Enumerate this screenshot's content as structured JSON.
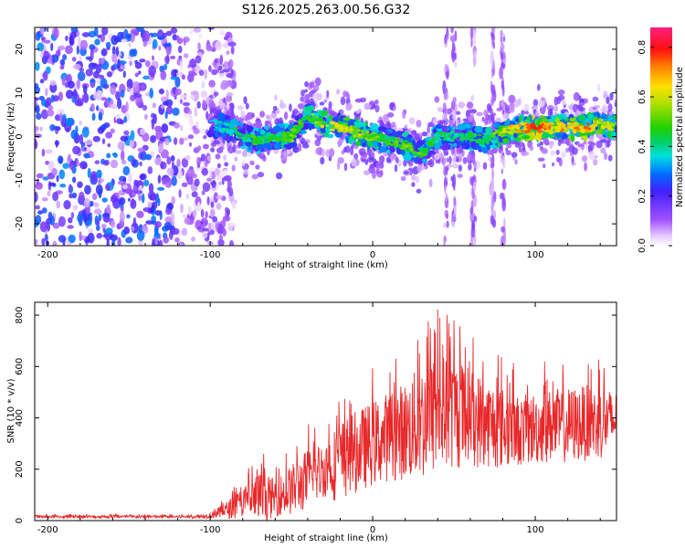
{
  "title": "S126.2025.263.00.56.G32",
  "colors": {
    "series": "#e8282a",
    "frame": "#000000",
    "spectrogram_background": "#ffffff"
  },
  "chart_data": [
    {
      "type": "heatmap",
      "xlabel": "Height of straight line (km)",
      "ylabel": "Frequency (Hz)",
      "xlim": [
        -208,
        150
      ],
      "ylim": [
        -25,
        25
      ],
      "xticks": [
        -200,
        -100,
        0,
        100
      ],
      "yticks": [
        -20,
        -10,
        0,
        10,
        20
      ],
      "colorbar": {
        "label": "Normalized spectral amplitude",
        "range": [
          0.0,
          0.88
        ],
        "ticks": [
          "0.0",
          "0.2",
          "0.4",
          "0.6",
          "0.8"
        ],
        "colormap": "rainbow (violet-blue-cyan-green-yellow-red-magenta)"
      },
      "ridge": {
        "description": "spectral line near 0 Hz from about -100 km to 150 km",
        "x": [
          -100,
          -90,
          -80,
          -70,
          -60,
          -50,
          -40,
          -30,
          -20,
          -10,
          0,
          10,
          20,
          30,
          40,
          50,
          60,
          70,
          80,
          90,
          100,
          110,
          120,
          130,
          140,
          150
        ],
        "y": [
          3,
          2,
          0,
          -1,
          0,
          0,
          5,
          3,
          2,
          1,
          0,
          -1,
          -2,
          -4,
          0,
          0,
          0,
          -1,
          1,
          2,
          2,
          2,
          2,
          2,
          3,
          2
        ],
        "peak_amplitude": [
          0.35,
          0.4,
          0.45,
          0.5,
          0.45,
          0.55,
          0.5,
          0.6,
          0.65,
          0.6,
          0.55,
          0.5,
          0.55,
          0.5,
          0.45,
          0.45,
          0.5,
          0.5,
          0.6,
          0.7,
          0.8,
          0.75,
          0.7,
          0.75,
          0.65,
          0.6
        ]
      },
      "noise_region": {
        "x_range": [
          -208,
          -100
        ],
        "typical_amplitude": 0.15
      },
      "vertical_streaks_x": [
        45,
        50,
        62,
        74,
        80
      ]
    },
    {
      "type": "line",
      "xlabel": "Height of straight line (km)",
      "ylabel": "SNR (10 * v/v)",
      "xlim": [
        -208,
        150
      ],
      "ylim": [
        0,
        850
      ],
      "xticks": [
        -200,
        -100,
        0,
        100
      ],
      "yticks": [
        0,
        200,
        400,
        600,
        800
      ],
      "series": [
        {
          "name": "SNR",
          "envelope_x": [
            -208,
            -150,
            -110,
            -100,
            -90,
            -80,
            -70,
            -60,
            -50,
            -40,
            -30,
            -20,
            -10,
            0,
            10,
            20,
            30,
            40,
            50,
            60,
            70,
            80,
            90,
            100,
            110,
            120,
            130,
            140,
            150
          ],
          "envelope_mean": [
            15,
            15,
            15,
            20,
            40,
            70,
            85,
            90,
            120,
            160,
            200,
            230,
            270,
            300,
            330,
            350,
            380,
            420,
            420,
            400,
            380,
            360,
            350,
            360,
            370,
            370,
            380,
            380,
            390
          ],
          "envelope_peak": [
            25,
            25,
            25,
            40,
            100,
            180,
            280,
            220,
            300,
            380,
            400,
            520,
            560,
            600,
            650,
            700,
            800,
            850,
            820,
            760,
            700,
            650,
            600,
            620,
            630,
            640,
            650,
            640,
            600
          ]
        }
      ]
    }
  ]
}
